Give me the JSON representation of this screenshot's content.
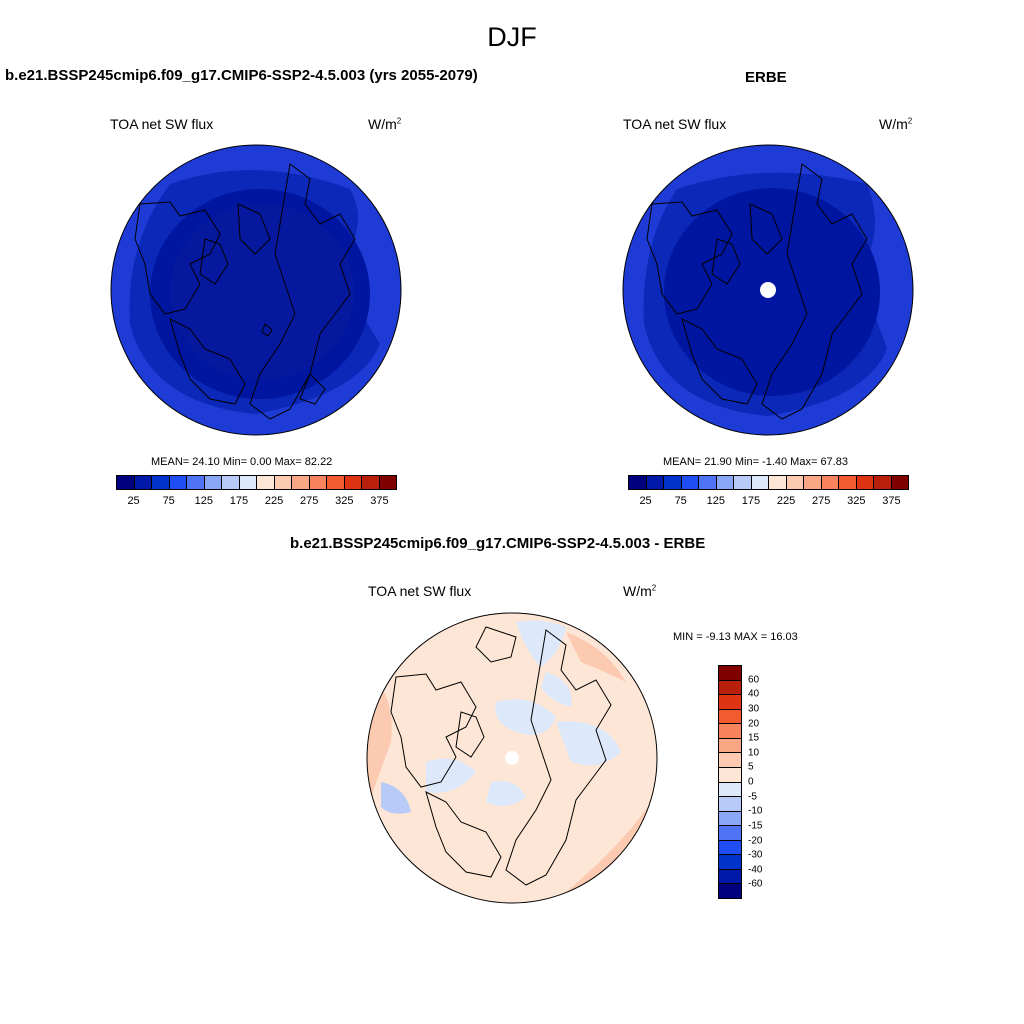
{
  "figure": {
    "title": "DJF"
  },
  "panels": {
    "model": {
      "title": "b.e21.BSSP245cmip6.f09_g17.CMIP6-SSP2-4.5.003 (yrs 2055-2079)",
      "left_label": "TOA net SW flux",
      "units": "W/m",
      "units_sup": "2",
      "stats": "MEAN=  24.10  Min=   0.00  Max=  82.22"
    },
    "obs": {
      "title": "ERBE",
      "left_label": "TOA net SW flux",
      "units": "W/m",
      "units_sup": "2",
      "stats": "MEAN=  21.90  Min=  -1.40  Max=  67.83"
    },
    "diff": {
      "title": "b.e21.BSSP245cmip6.f09_g17.CMIP6-SSP2-4.5.003 - ERBE",
      "left_label": "TOA net SW flux",
      "units": "W/m",
      "units_sup": "2",
      "stats": "MIN =  -9.13 MAX =  16.03"
    }
  },
  "colorbars": {
    "flux": {
      "colors": [
        "#00007f",
        "#0019a8",
        "#0033cc",
        "#1f4ff2",
        "#4f73f5",
        "#8aa6f7",
        "#b8caf7",
        "#dde8fa",
        "#fde6d6",
        "#fbcab0",
        "#f9a784",
        "#f7845c",
        "#f25a2f",
        "#df3413",
        "#b8200c",
        "#800000"
      ],
      "tick_labels": [
        "25",
        "75",
        "125",
        "175",
        "225",
        "275",
        "325",
        "375"
      ]
    },
    "diff": {
      "colors": [
        "#800000",
        "#b8200c",
        "#df3413",
        "#f25a2f",
        "#f7845c",
        "#f9a784",
        "#fbcab0",
        "#fde6d6",
        "#dde8fa",
        "#b8caf7",
        "#8aa6f7",
        "#4f73f5",
        "#1f4ff2",
        "#0033cc",
        "#0019a8",
        "#00007f"
      ],
      "tick_labels": [
        "60",
        "40",
        "30",
        "20",
        "15",
        "10",
        "5",
        "0",
        "-5",
        "-10",
        "-15",
        "-20",
        "-30",
        "-40",
        "-60"
      ]
    }
  }
}
